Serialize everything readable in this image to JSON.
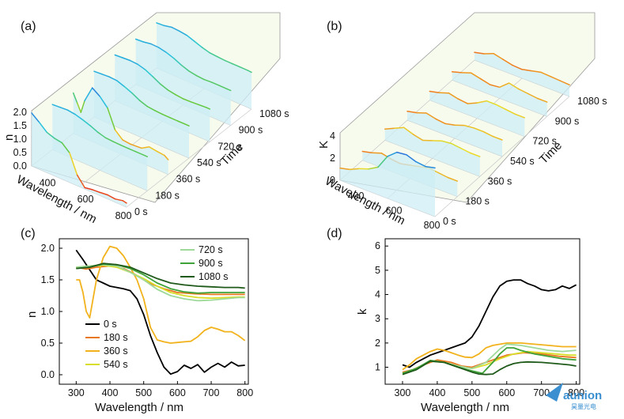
{
  "panels": {
    "a": {
      "label": "(a)"
    },
    "b": {
      "label": "(b)"
    },
    "c": {
      "label": "(c)"
    },
    "d": {
      "label": "(d)"
    }
  },
  "watermark": {
    "text": "aunion",
    "sub": "昊量光电"
  },
  "chart_data": [
    {
      "type": "line",
      "id": "a",
      "ylabel": "n",
      "xlabel": "Wavelength / nm",
      "zlabel": "Time",
      "x_ticks": [
        "400",
        "600",
        "800"
      ],
      "y_ticks": [
        "0.0",
        "0.5",
        "1.0",
        "1.5",
        "2.0"
      ],
      "z_ticks": [
        "0 s",
        "180 s",
        "360 s",
        "540 s",
        "720 s",
        "900 s",
        "1080 s"
      ],
      "series": [
        {
          "x": [
            300,
            340,
            380,
            420,
            460,
            500,
            540,
            580,
            620,
            660,
            700,
            740,
            780,
            800
          ],
          "values": [
            1.97,
            1.75,
            1.5,
            1.4,
            1.35,
            1.1,
            0.4,
            0.05,
            0.1,
            0.12,
            0.15,
            0.12,
            0.18,
            0.15
          ]
        },
        {
          "x": [
            300,
            340,
            380,
            420,
            460,
            500,
            540,
            580,
            620,
            660,
            700,
            740,
            780,
            800
          ],
          "values": [
            1.68,
            1.7,
            1.72,
            1.68,
            1.6,
            1.5,
            1.38,
            1.3,
            1.28,
            1.27,
            1.27,
            1.27,
            1.27,
            1.27
          ]
        },
        {
          "x": [
            300,
            320,
            340,
            360,
            400,
            440,
            480,
            520,
            560,
            600,
            660,
            700,
            740,
            780,
            800
          ],
          "values": [
            1.5,
            1.2,
            0.9,
            1.4,
            2.0,
            1.8,
            1.5,
            0.8,
            0.55,
            0.52,
            0.55,
            0.72,
            0.68,
            0.65,
            0.55
          ]
        },
        {
          "x": [
            300,
            340,
            380,
            420,
            460,
            500,
            540,
            580,
            620,
            660,
            700,
            740,
            780,
            800
          ],
          "values": [
            1.7,
            1.72,
            1.74,
            1.72,
            1.62,
            1.5,
            1.35,
            1.25,
            1.22,
            1.2,
            1.2,
            1.2,
            1.2,
            1.2
          ]
        },
        {
          "x": [
            300,
            340,
            380,
            420,
            460,
            500,
            540,
            580,
            620,
            660,
            700,
            740,
            780,
            800
          ],
          "values": [
            1.7,
            1.72,
            1.74,
            1.72,
            1.64,
            1.5,
            1.35,
            1.25,
            1.2,
            1.17,
            1.18,
            1.2,
            1.22,
            1.22
          ]
        },
        {
          "x": [
            300,
            340,
            380,
            420,
            460,
            500,
            540,
            580,
            620,
            660,
            700,
            740,
            780,
            800
          ],
          "values": [
            1.68,
            1.7,
            1.75,
            1.74,
            1.68,
            1.58,
            1.45,
            1.35,
            1.3,
            1.28,
            1.3,
            1.3,
            1.3,
            1.3
          ]
        },
        {
          "x": [
            300,
            340,
            380,
            420,
            460,
            500,
            540,
            580,
            620,
            660,
            700,
            740,
            780,
            800
          ],
          "values": [
            1.68,
            1.7,
            1.76,
            1.74,
            1.7,
            1.6,
            1.5,
            1.42,
            1.4,
            1.38,
            1.38,
            1.38,
            1.38,
            1.37
          ]
        }
      ]
    },
    {
      "type": "line",
      "id": "b",
      "ylabel": "K",
      "xlabel": "Wavelength / nm",
      "zlabel": "Time",
      "x_ticks": [
        "400",
        "600",
        "800"
      ],
      "y_ticks": [
        "0",
        "2",
        "4"
      ],
      "z_ticks": [
        "0 s",
        "180 s",
        "360 s",
        "540 s",
        "720 s",
        "900 s",
        "1080 s"
      ],
      "series": [
        {
          "x": [
            300,
            350,
            400,
            450,
            500,
            550,
            600,
            650,
            700,
            750,
            800
          ],
          "values": [
            1.1,
            1.3,
            1.7,
            2.0,
            2.5,
            3.8,
            4.5,
            4.6,
            4.3,
            4.2,
            4.4
          ]
        },
        {
          "x": [
            300,
            350,
            400,
            450,
            500,
            550,
            600,
            650,
            700,
            750,
            800
          ],
          "values": [
            0.8,
            1.0,
            1.3,
            1.1,
            1.0,
            1.2,
            1.4,
            1.6,
            1.5,
            1.4,
            1.4
          ]
        },
        {
          "x": [
            300,
            350,
            400,
            450,
            500,
            550,
            600,
            650,
            700,
            750,
            800
          ],
          "values": [
            1.0,
            1.4,
            1.8,
            1.5,
            1.3,
            1.6,
            1.9,
            2.0,
            1.9,
            1.8,
            1.8
          ]
        },
        {
          "x": [
            300,
            350,
            400,
            450,
            500,
            550,
            600,
            650,
            700,
            750,
            800
          ],
          "values": [
            0.8,
            1.0,
            1.3,
            1.1,
            1.0,
            1.2,
            1.5,
            1.6,
            1.6,
            1.5,
            1.5
          ]
        },
        {
          "x": [
            300,
            350,
            400,
            450,
            500,
            550,
            600,
            650,
            700,
            750,
            800
          ],
          "values": [
            0.8,
            1.0,
            1.3,
            1.1,
            1.0,
            1.4,
            1.9,
            1.9,
            1.8,
            1.7,
            1.7
          ]
        },
        {
          "x": [
            300,
            350,
            400,
            450,
            500,
            550,
            600,
            650,
            700,
            750,
            800
          ],
          "values": [
            0.75,
            1.0,
            1.3,
            1.1,
            0.9,
            1.0,
            1.7,
            1.5,
            1.4,
            1.3,
            1.3
          ]
        },
        {
          "x": [
            300,
            350,
            400,
            450,
            500,
            550,
            600,
            650,
            700,
            750,
            800
          ],
          "values": [
            0.7,
            0.9,
            1.25,
            1.05,
            0.85,
            0.8,
            1.0,
            1.2,
            1.15,
            1.1,
            1.05
          ]
        }
      ]
    },
    {
      "type": "line",
      "id": "c",
      "xlabel": "Wavelength / nm",
      "ylabel": "n",
      "xlim": [
        250,
        810
      ],
      "ylim": [
        -0.15,
        2.15
      ],
      "x_ticks": [
        300,
        400,
        500,
        600,
        700,
        800
      ],
      "y_ticks": [
        0.0,
        0.5,
        1.0,
        1.5,
        2.0
      ],
      "legend_left": [
        "0 s",
        "180 s",
        "360 s",
        "540 s"
      ],
      "legend_right": [
        "720 s",
        "900 s",
        "1080 s"
      ],
      "series": [
        {
          "name": "0 s",
          "color": "#000000",
          "x": [
            300,
            320,
            340,
            360,
            380,
            400,
            420,
            440,
            460,
            480,
            500,
            520,
            540,
            560,
            580,
            600,
            620,
            640,
            660,
            680,
            700,
            720,
            740,
            760,
            780,
            800
          ],
          "values": [
            1.97,
            1.82,
            1.66,
            1.5,
            1.45,
            1.4,
            1.38,
            1.36,
            1.33,
            1.2,
            0.95,
            0.62,
            0.35,
            0.12,
            0.01,
            0.05,
            0.15,
            0.1,
            0.16,
            0.04,
            0.12,
            0.18,
            0.12,
            0.2,
            0.14,
            0.15
          ]
        },
        {
          "name": "180 s",
          "color": "#e8771e",
          "x": [
            300,
            330,
            360,
            400,
            440,
            470,
            500,
            530,
            560,
            600,
            650,
            700,
            750,
            800
          ],
          "values": [
            1.7,
            1.67,
            1.7,
            1.72,
            1.68,
            1.6,
            1.5,
            1.42,
            1.36,
            1.3,
            1.28,
            1.27,
            1.27,
            1.27
          ]
        },
        {
          "name": "360 s",
          "color": "#f2b21c",
          "x": [
            300,
            310,
            320,
            330,
            340,
            360,
            380,
            400,
            420,
            440,
            460,
            480,
            500,
            520,
            540,
            560,
            580,
            600,
            620,
            640,
            660,
            680,
            700,
            720,
            740,
            760,
            780,
            800
          ],
          "values": [
            1.5,
            1.5,
            1.3,
            1.0,
            0.9,
            1.5,
            1.85,
            2.03,
            2.0,
            1.88,
            1.7,
            1.5,
            1.2,
            0.75,
            0.55,
            0.52,
            0.5,
            0.51,
            0.52,
            0.53,
            0.6,
            0.7,
            0.75,
            0.72,
            0.68,
            0.68,
            0.62,
            0.54
          ]
        },
        {
          "name": "540 s",
          "color": "#d9de2b",
          "x": [
            300,
            340,
            380,
            420,
            460,
            500,
            540,
            580,
            620,
            660,
            700,
            740,
            780,
            800
          ],
          "values": [
            1.7,
            1.72,
            1.73,
            1.7,
            1.62,
            1.52,
            1.4,
            1.3,
            1.25,
            1.22,
            1.21,
            1.22,
            1.23,
            1.23
          ]
        },
        {
          "name": "720 s",
          "color": "#9ed99a",
          "x": [
            300,
            340,
            380,
            420,
            460,
            500,
            540,
            580,
            620,
            660,
            700,
            740,
            780,
            800
          ],
          "values": [
            1.7,
            1.72,
            1.74,
            1.72,
            1.62,
            1.5,
            1.35,
            1.25,
            1.2,
            1.17,
            1.18,
            1.2,
            1.22,
            1.22
          ]
        },
        {
          "name": "900 s",
          "color": "#3fa33a",
          "x": [
            300,
            340,
            380,
            420,
            460,
            500,
            540,
            580,
            620,
            660,
            700,
            740,
            780,
            800
          ],
          "values": [
            1.68,
            1.7,
            1.75,
            1.74,
            1.68,
            1.58,
            1.45,
            1.36,
            1.31,
            1.29,
            1.3,
            1.3,
            1.3,
            1.3
          ]
        },
        {
          "name": "1080 s",
          "color": "#1f5a1a",
          "x": [
            300,
            340,
            380,
            420,
            460,
            500,
            540,
            580,
            620,
            660,
            700,
            740,
            780,
            800
          ],
          "values": [
            1.68,
            1.7,
            1.76,
            1.74,
            1.7,
            1.61,
            1.52,
            1.45,
            1.42,
            1.4,
            1.39,
            1.38,
            1.38,
            1.37
          ]
        }
      ]
    },
    {
      "type": "line",
      "id": "d",
      "xlabel": "Wavelength / nm",
      "ylabel": "k",
      "xlim": [
        250,
        810
      ],
      "ylim": [
        0.3,
        6.3
      ],
      "x_ticks": [
        300,
        400,
        500,
        600,
        700,
        800
      ],
      "y_ticks": [
        1,
        2,
        3,
        4,
        5,
        6
      ],
      "series": [
        {
          "name": "0 s",
          "color": "#000000",
          "x": [
            300,
            320,
            340,
            360,
            380,
            400,
            420,
            440,
            460,
            480,
            500,
            520,
            540,
            560,
            580,
            600,
            620,
            640,
            660,
            680,
            700,
            720,
            740,
            760,
            780,
            800
          ],
          "values": [
            1.1,
            1.0,
            1.2,
            1.35,
            1.5,
            1.6,
            1.7,
            1.8,
            1.9,
            2.0,
            2.25,
            2.7,
            3.3,
            3.9,
            4.35,
            4.55,
            4.6,
            4.6,
            4.45,
            4.35,
            4.2,
            4.15,
            4.2,
            4.35,
            4.25,
            4.4
          ]
        },
        {
          "name": "180 s",
          "color": "#e8771e",
          "x": [
            300,
            330,
            360,
            400,
            440,
            470,
            500,
            530,
            560,
            600,
            650,
            700,
            750,
            800
          ],
          "values": [
            0.8,
            0.9,
            1.1,
            1.3,
            1.2,
            1.05,
            1.0,
            1.15,
            1.3,
            1.5,
            1.6,
            1.55,
            1.45,
            1.4
          ]
        },
        {
          "name": "360 s",
          "color": "#f2b21c",
          "x": [
            300,
            320,
            340,
            360,
            380,
            400,
            420,
            440,
            460,
            480,
            500,
            520,
            540,
            560,
            580,
            600,
            640,
            680,
            720,
            760,
            800
          ],
          "values": [
            0.9,
            1.1,
            1.35,
            1.5,
            1.65,
            1.75,
            1.7,
            1.6,
            1.5,
            1.42,
            1.4,
            1.55,
            1.8,
            1.9,
            1.95,
            2.0,
            2.0,
            1.95,
            1.9,
            1.85,
            1.85
          ]
        },
        {
          "name": "540 s",
          "color": "#d9de2b",
          "x": [
            300,
            340,
            380,
            420,
            460,
            500,
            540,
            580,
            620,
            660,
            700,
            740,
            780,
            800
          ],
          "values": [
            0.75,
            0.95,
            1.25,
            1.2,
            1.05,
            0.95,
            1.1,
            1.35,
            1.55,
            1.65,
            1.6,
            1.55,
            1.5,
            1.5
          ]
        },
        {
          "name": "720 s",
          "color": "#9ed99a",
          "x": [
            300,
            340,
            380,
            420,
            460,
            500,
            540,
            580,
            600,
            640,
            680,
            720,
            760,
            800
          ],
          "values": [
            0.75,
            0.95,
            1.25,
            1.2,
            1.05,
            0.95,
            1.2,
            1.75,
            1.95,
            1.9,
            1.8,
            1.7,
            1.65,
            1.7
          ]
        },
        {
          "name": "900 s",
          "color": "#3fa33a",
          "x": [
            300,
            340,
            380,
            420,
            460,
            500,
            530,
            560,
            580,
            600,
            620,
            640,
            680,
            720,
            760,
            800
          ],
          "values": [
            0.75,
            0.95,
            1.28,
            1.2,
            1.0,
            0.85,
            0.75,
            1.2,
            1.55,
            1.8,
            1.8,
            1.7,
            1.55,
            1.45,
            1.35,
            1.3
          ]
        },
        {
          "name": "1080 s",
          "color": "#1f5a1a",
          "x": [
            300,
            340,
            380,
            420,
            460,
            500,
            520,
            540,
            560,
            580,
            600,
            620,
            640,
            660,
            700,
            740,
            780,
            800
          ],
          "values": [
            0.7,
            0.9,
            1.25,
            1.2,
            1.0,
            0.8,
            0.72,
            0.7,
            0.72,
            0.9,
            1.05,
            1.15,
            1.2,
            1.22,
            1.2,
            1.15,
            1.1,
            1.05
          ]
        }
      ]
    }
  ]
}
